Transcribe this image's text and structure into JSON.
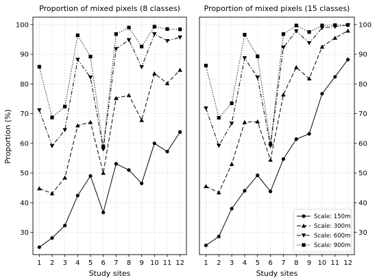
{
  "figure": {
    "y_axis_label": "Proportion (%)",
    "x_axis_label": "Study sites",
    "left_title": "Proportion of mixed pixels (8 classes)",
    "right_title": "Proportion of mixed pixels (15 classes)"
  },
  "chart_data": [
    {
      "type": "line",
      "title": "Proportion of mixed pixels (8 classes)",
      "xlabel": "Study sites",
      "ylabel": "Proportion (%)",
      "xlim": [
        0.5,
        12.5
      ],
      "ylim": [
        22.5,
        102.5
      ],
      "x": [
        1,
        2,
        3,
        4,
        5,
        6,
        7,
        8,
        9,
        10,
        11,
        12
      ],
      "x_ticks": [
        1,
        2,
        3,
        4,
        5,
        6,
        7,
        8,
        9,
        10,
        11,
        12
      ],
      "y_ticks": [
        30,
        40,
        50,
        60,
        70,
        80,
        90,
        100
      ],
      "grid": true,
      "y_tick_side": "left",
      "series": [
        {
          "name": "Scale: 150m",
          "marker": "circle",
          "dash": "solid",
          "color": "#000000",
          "values": [
            25.0,
            28.1,
            32.3,
            42.4,
            49.0,
            36.7,
            53.1,
            51.0,
            46.5,
            60.0,
            57.2,
            63.8
          ]
        },
        {
          "name": "Scale: 300m",
          "marker": "triangle-up",
          "dash": "dashed",
          "color": "#000000",
          "values": [
            44.8,
            43.1,
            48.4,
            66.0,
            67.1,
            50.0,
            75.2,
            76.2,
            67.8,
            83.5,
            80.2,
            84.7
          ]
        },
        {
          "name": "Scale: 600m",
          "marker": "triangle-down",
          "dash": "dashdot",
          "color": "#000000",
          "values": [
            71.2,
            59.1,
            64.5,
            88.2,
            82.2,
            58.0,
            91.8,
            94.8,
            85.7,
            96.8,
            94.5,
            95.7
          ]
        },
        {
          "name": "Scale: 900m",
          "marker": "square",
          "dash": "dotted",
          "color": "#000000",
          "values": [
            85.8,
            68.7,
            72.4,
            96.4,
            89.2,
            59.0,
            96.8,
            99.0,
            92.6,
            99.3,
            98.5,
            98.4
          ]
        }
      ]
    },
    {
      "type": "line",
      "title": "Proportion of mixed pixels (15 classes)",
      "xlabel": "Study sites",
      "ylabel": "",
      "xlim": [
        0.5,
        12.5
      ],
      "ylim": [
        22.5,
        102.5
      ],
      "x": [
        1,
        2,
        3,
        4,
        5,
        6,
        7,
        8,
        9,
        10,
        11,
        12
      ],
      "x_ticks": [
        1,
        2,
        3,
        4,
        5,
        6,
        7,
        8,
        9,
        10,
        11,
        12
      ],
      "y_ticks": [
        30,
        40,
        50,
        60,
        70,
        80,
        90,
        100
      ],
      "grid": true,
      "y_tick_side": "right",
      "legend": "bottom-right",
      "series": [
        {
          "name": "Scale: 150m",
          "marker": "circle",
          "dash": "solid",
          "color": "#000000",
          "values": [
            25.6,
            28.6,
            38.0,
            44.0,
            49.2,
            43.8,
            54.7,
            61.4,
            63.2,
            76.7,
            82.4,
            88.2
          ]
        },
        {
          "name": "Scale: 300m",
          "marker": "triangle-up",
          "dash": "dashed",
          "color": "#000000",
          "values": [
            45.5,
            43.4,
            53.0,
            67.1,
            67.3,
            54.4,
            76.4,
            85.6,
            81.8,
            92.5,
            95.5,
            97.9
          ]
        },
        {
          "name": "Scale: 600m",
          "marker": "triangle-down",
          "dash": "dashdot",
          "color": "#000000",
          "values": [
            71.8,
            59.2,
            66.7,
            88.7,
            82.2,
            59.1,
            92.3,
            97.8,
            93.8,
            98.9,
            99.3,
            99.8
          ]
        },
        {
          "name": "Scale: 900m",
          "marker": "square",
          "dash": "dotted",
          "color": "#000000",
          "values": [
            86.2,
            68.6,
            73.5,
            96.6,
            89.3,
            59.8,
            96.8,
            99.7,
            97.5,
            99.7,
            99.8,
            99.9
          ]
        }
      ]
    }
  ]
}
